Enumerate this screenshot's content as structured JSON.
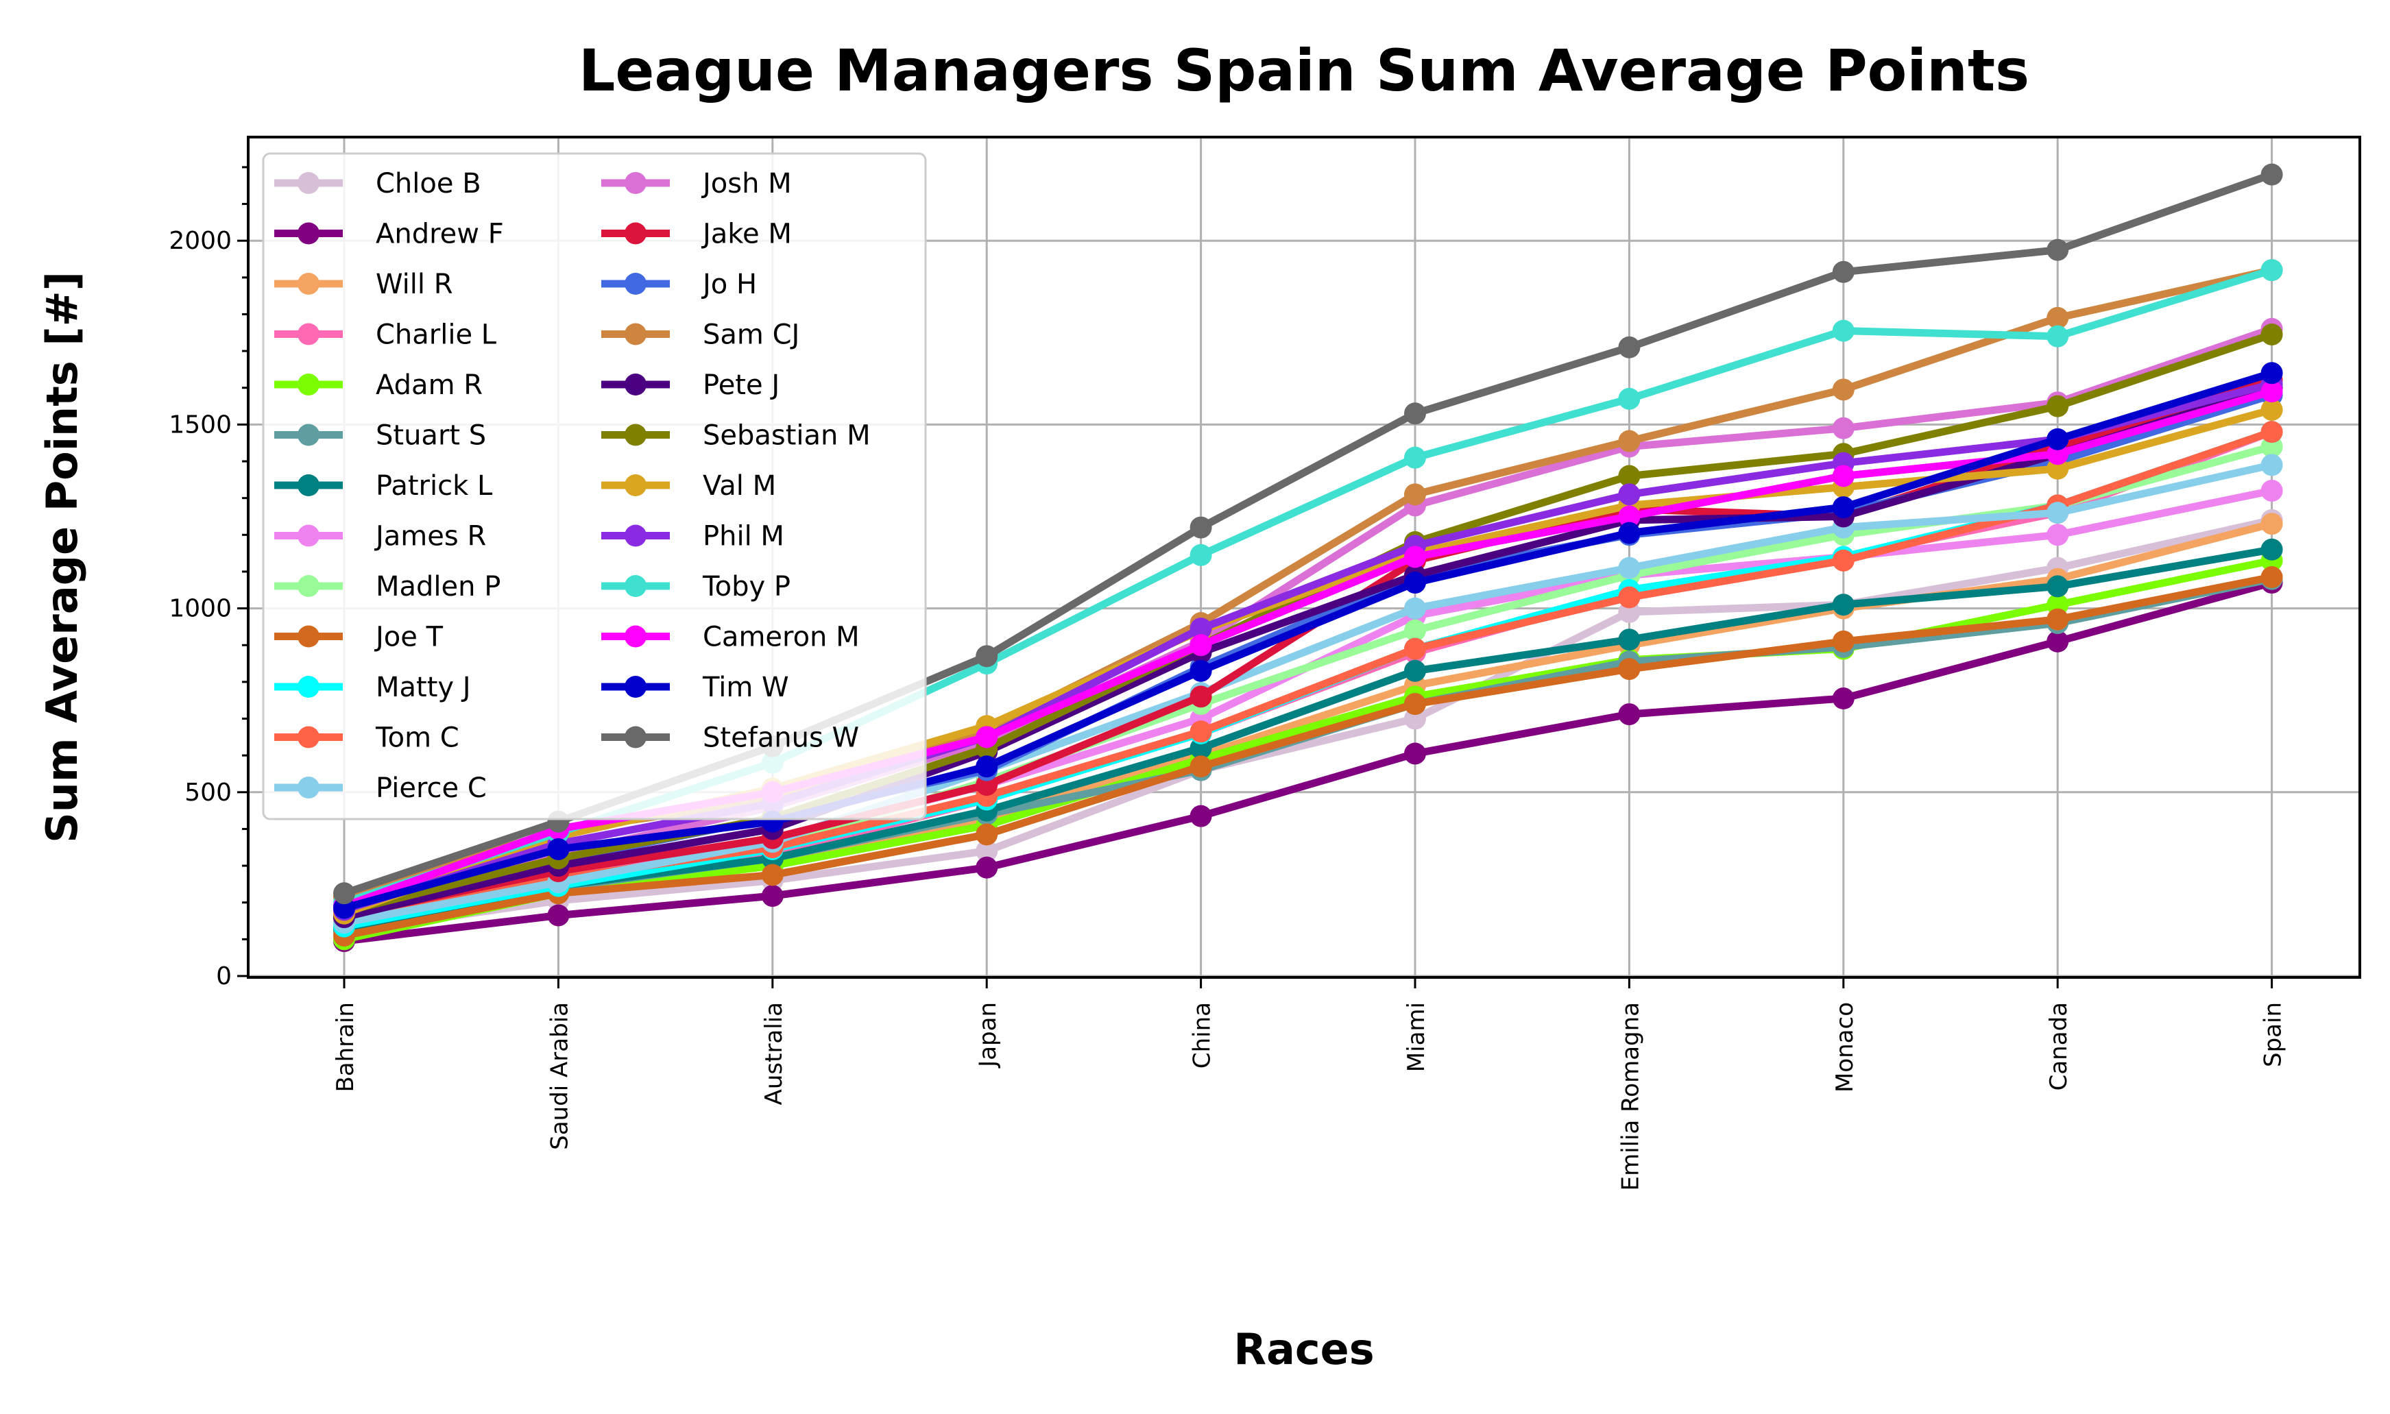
{
  "chart_data": {
    "type": "line",
    "title": "League Managers Spain Sum Average Points",
    "xlabel": "Races",
    "ylabel": "Sum Average Points [#]",
    "categories": [
      "Bahrain",
      "Saudi Arabia",
      "Australia",
      "Japan",
      "China",
      "Miami",
      "Emilia Romagna",
      "Monaco",
      "Canada",
      "Spain"
    ],
    "ylim": [
      0,
      2280
    ],
    "yticks": [
      0,
      500,
      1000,
      1500,
      2000
    ],
    "grid": true,
    "legend_position": "top-left",
    "legend_columns": 2,
    "series": [
      {
        "name": "Chloe B",
        "color": "#d8bfd8",
        "values": [
          120,
          205,
          260,
          340,
          560,
          700,
          990,
          1010,
          1110,
          1240
        ]
      },
      {
        "name": "Andrew F",
        "color": "#800080",
        "values": [
          95,
          165,
          218,
          295,
          435,
          605,
          712,
          755,
          910,
          1070
        ]
      },
      {
        "name": "Will R",
        "color": "#f4a460",
        "values": [
          130,
          230,
          310,
          430,
          600,
          790,
          900,
          1000,
          1080,
          1230
        ]
      },
      {
        "name": "Charlie L",
        "color": "#ff69b4",
        "values": [
          160,
          260,
          330,
          480,
          660,
          880,
          1040,
          1140,
          1260,
          1480
        ]
      },
      {
        "name": "Adam R",
        "color": "#7cfc00",
        "values": [
          100,
          225,
          300,
          410,
          590,
          760,
          860,
          890,
          1010,
          1130
        ]
      },
      {
        "name": "Stuart S",
        "color": "#5f9ea0",
        "values": [
          120,
          240,
          320,
          440,
          560,
          740,
          855,
          895,
          960,
          1080
        ]
      },
      {
        "name": "Patrick L",
        "color": "#008080",
        "values": [
          130,
          245,
          320,
          450,
          620,
          830,
          915,
          1010,
          1060,
          1160
        ]
      },
      {
        "name": "James R",
        "color": "#ee82ee",
        "values": [
          150,
          280,
          370,
          520,
          700,
          980,
          1090,
          1140,
          1200,
          1320
        ]
      },
      {
        "name": "Madlen P",
        "color": "#98fb98",
        "values": [
          140,
          260,
          350,
          530,
          740,
          940,
          1090,
          1200,
          1280,
          1440
        ]
      },
      {
        "name": "Joe T",
        "color": "#d2691e",
        "values": [
          110,
          225,
          275,
          385,
          570,
          740,
          835,
          910,
          970,
          1085
        ]
      },
      {
        "name": "Matty J",
        "color": "#00ffff",
        "values": [
          135,
          245,
          345,
          480,
          660,
          890,
          1050,
          1140,
          1280,
          1480
        ]
      },
      {
        "name": "Tom C",
        "color": "#ff6347",
        "values": [
          150,
          265,
          350,
          490,
          665,
          890,
          1030,
          1130,
          1280,
          1480
        ]
      },
      {
        "name": "Pierce C",
        "color": "#87ceeb",
        "values": [
          145,
          255,
          365,
          560,
          770,
          1000,
          1110,
          1220,
          1260,
          1390
        ]
      },
      {
        "name": "Josh M",
        "color": "#da70d6",
        "values": [
          190,
          330,
          460,
          640,
          910,
          1280,
          1440,
          1490,
          1560,
          1760
        ]
      },
      {
        "name": "Jake M",
        "color": "#dc143c",
        "values": [
          165,
          285,
          375,
          520,
          760,
          1130,
          1270,
          1250,
          1440,
          1620
        ]
      },
      {
        "name": "Jo H",
        "color": "#4169e1",
        "values": [
          175,
          315,
          430,
          560,
          840,
          1090,
          1200,
          1260,
          1400,
          1580
        ]
      },
      {
        "name": "Sam CJ",
        "color": "#cd853f",
        "values": [
          215,
          395,
          480,
          670,
          960,
          1310,
          1455,
          1595,
          1790,
          1920
        ]
      },
      {
        "name": "Pete J",
        "color": "#4b0082",
        "values": [
          160,
          300,
          400,
          610,
          880,
          1090,
          1240,
          1250,
          1420,
          1600
        ]
      },
      {
        "name": "Sebastian M",
        "color": "#808000",
        "values": [
          175,
          320,
          430,
          620,
          900,
          1180,
          1360,
          1420,
          1550,
          1745
        ]
      },
      {
        "name": "Val M",
        "color": "#daa520",
        "values": [
          170,
          380,
          510,
          680,
          940,
          1150,
          1280,
          1330,
          1380,
          1540
        ]
      },
      {
        "name": "Phil M",
        "color": "#8a2be2",
        "values": [
          180,
          360,
          470,
          650,
          945,
          1170,
          1310,
          1395,
          1460,
          1610
        ]
      },
      {
        "name": "Toby P",
        "color": "#40e0d0",
        "values": [
          200,
          390,
          580,
          850,
          1145,
          1410,
          1570,
          1755,
          1740,
          1920
        ]
      },
      {
        "name": "Cameron M",
        "color": "#ff00ff",
        "values": [
          190,
          400,
          500,
          650,
          900,
          1140,
          1250,
          1360,
          1420,
          1590
        ]
      },
      {
        "name": "Tim W",
        "color": "#0000cd",
        "values": [
          185,
          345,
          420,
          570,
          830,
          1070,
          1205,
          1275,
          1460,
          1640
        ]
      },
      {
        "name": "Stefanus W",
        "color": "#696969",
        "values": [
          225,
          420,
          625,
          870,
          1220,
          1530,
          1710,
          1915,
          1975,
          2180
        ]
      }
    ]
  }
}
